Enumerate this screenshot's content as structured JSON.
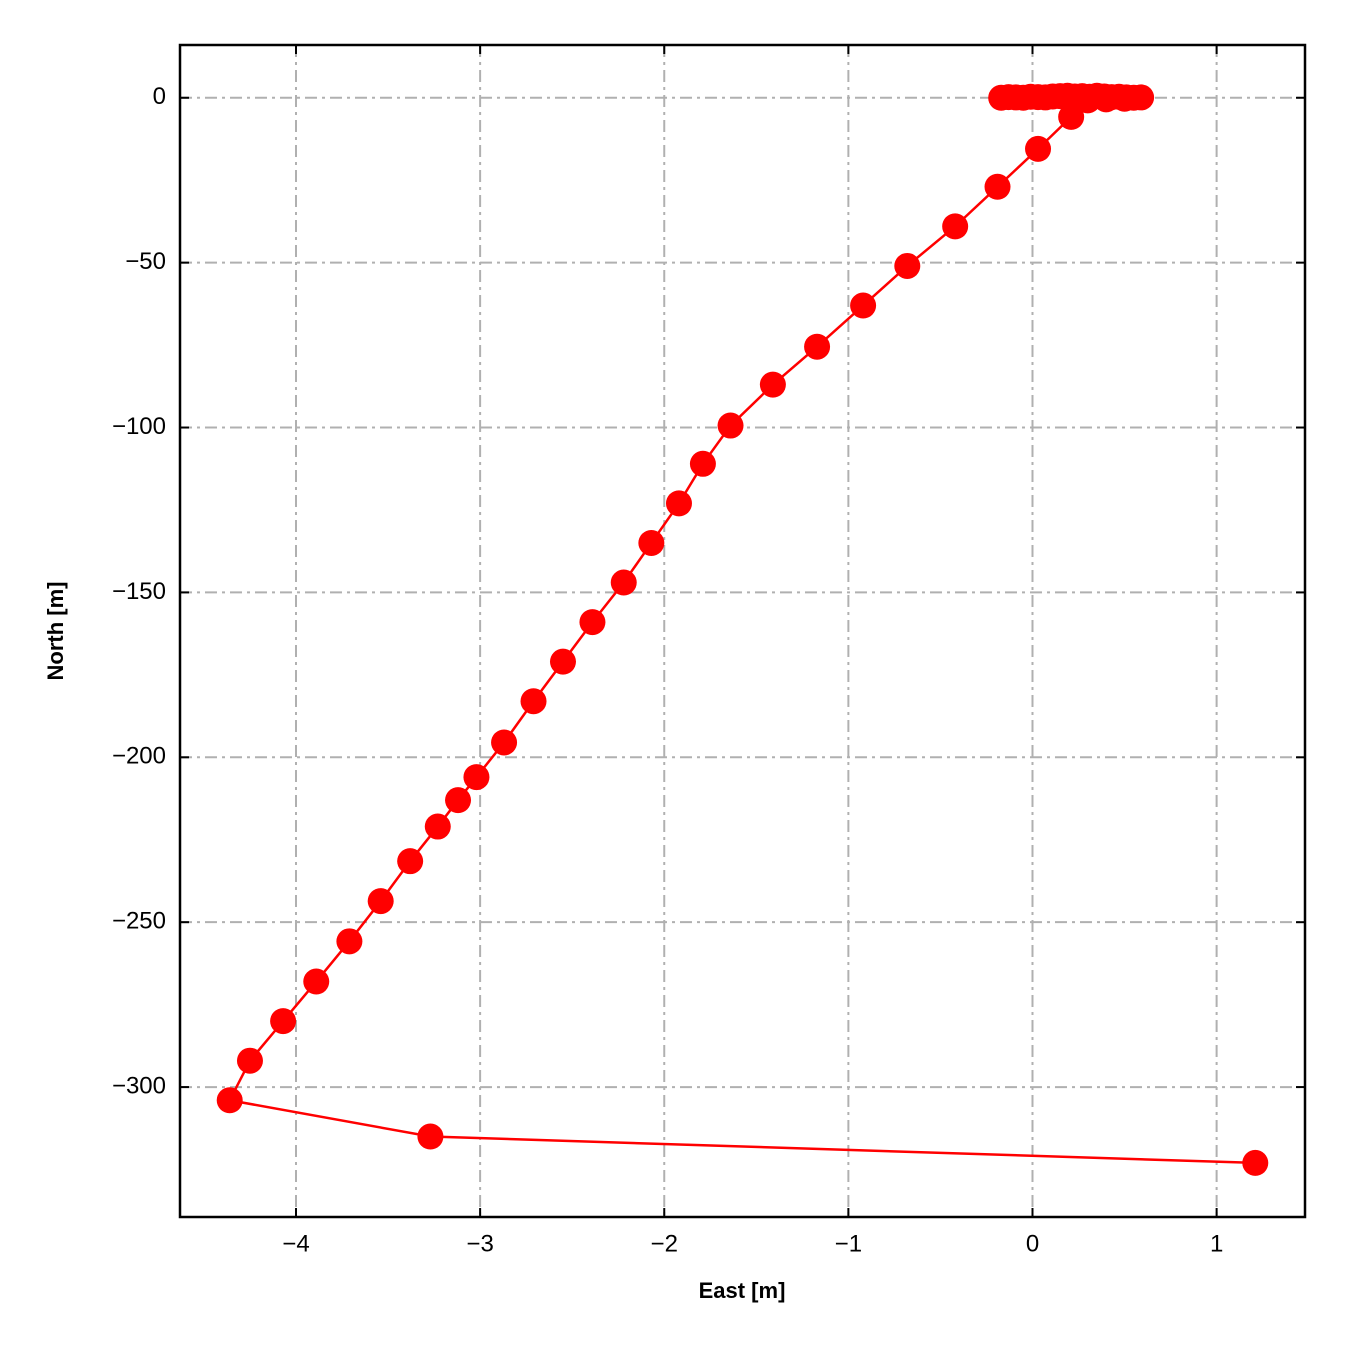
{
  "chart_data": {
    "type": "line",
    "xlabel": "East [m]",
    "ylabel": "North [m]",
    "x": [
      -0.17,
      -0.13,
      -0.09,
      -0.05,
      -0.01,
      0.03,
      0.07,
      0.11,
      0.15,
      0.19,
      0.23,
      0.27,
      0.31,
      0.35,
      0.39,
      0.43,
      0.47,
      0.51,
      0.55,
      0.59,
      0.5,
      0.4,
      0.3,
      0.21,
      0.03,
      -0.19,
      -0.42,
      -0.68,
      -0.92,
      -1.17,
      -1.41,
      -1.64,
      -1.79,
      -1.92,
      -2.07,
      -2.22,
      -2.39,
      -2.55,
      -2.71,
      -2.87,
      -3.02,
      -3.12,
      -3.23,
      -3.38,
      -3.54,
      -3.71,
      -3.89,
      -4.07,
      -4.25,
      -4.36,
      -3.27,
      1.21
    ],
    "values": [
      0,
      0.2,
      0.1,
      0,
      0.3,
      0.2,
      0.1,
      0.4,
      0.5,
      0.6,
      0.4,
      0.5,
      0.3,
      0.6,
      0.4,
      0.2,
      0.3,
      0.1,
      0,
      0.1,
      -0.3,
      -0.5,
      -0.8,
      -5.8,
      -15.5,
      -27,
      -39,
      -51,
      -63,
      -75.5,
      -87,
      -99.4,
      -111,
      -123,
      -135,
      -147,
      -159,
      -171,
      -183,
      -195.5,
      -206,
      -213,
      -221,
      -231.5,
      -243.6,
      -255.8,
      -268,
      -280,
      -292,
      -304,
      -315,
      -323
    ],
    "color": "#ff0000",
    "markers": true,
    "xlim": [
      -4.63,
      1.48
    ],
    "ylim": [
      -339.4,
      16
    ],
    "xticks": [
      {
        "value": -4,
        "label": "−4"
      },
      {
        "value": -3,
        "label": "−3"
      },
      {
        "value": -2,
        "label": "−2"
      },
      {
        "value": -1,
        "label": "−1"
      },
      0,
      1
    ],
    "yticks": [
      0,
      {
        "value": -50,
        "label": "−50"
      },
      {
        "value": -100,
        "label": "−100"
      },
      {
        "value": -150,
        "label": "−150"
      },
      {
        "value": -200,
        "label": "−200"
      },
      {
        "value": -250,
        "label": "−250"
      },
      {
        "value": -300,
        "label": "−300"
      }
    ],
    "grid": true
  }
}
